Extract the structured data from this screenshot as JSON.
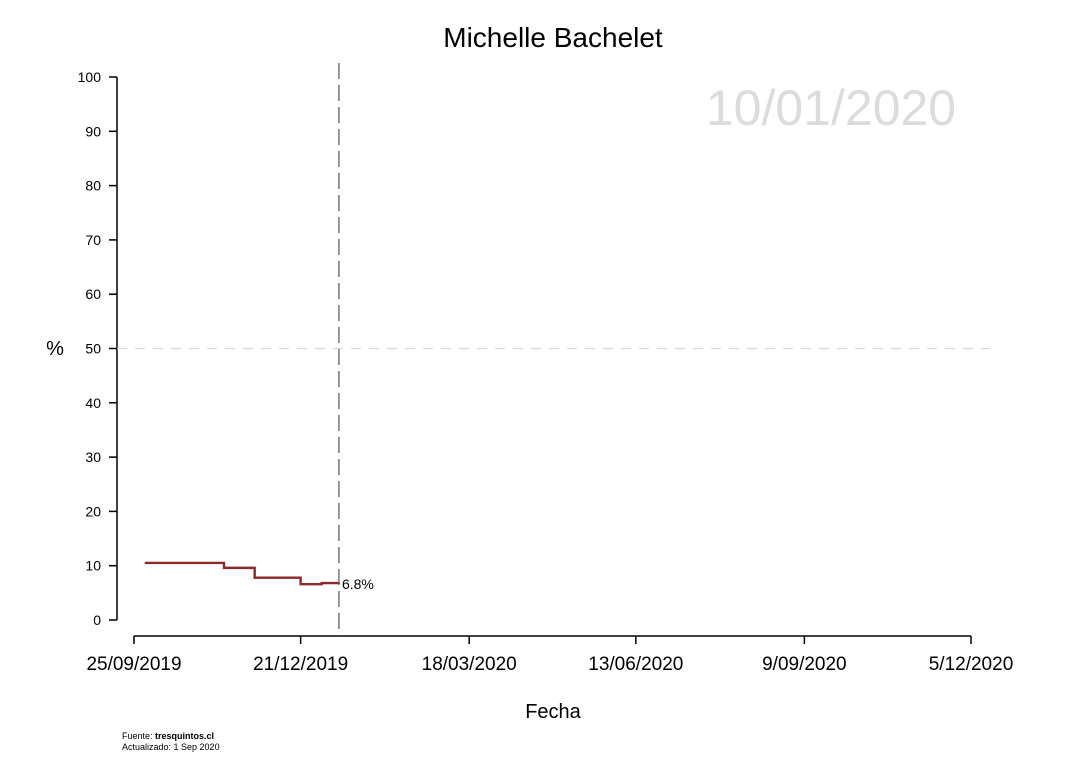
{
  "chart_data": {
    "type": "line",
    "title": "Michelle Bachelet",
    "watermark_date": "10/01/2020",
    "xlabel": "Fecha",
    "ylabel": "%",
    "ylim": [
      0,
      100
    ],
    "yticks": [
      0,
      10,
      20,
      30,
      40,
      50,
      60,
      70,
      80,
      90,
      100
    ],
    "xlim": [
      "2019-09-25",
      "2020-12-05"
    ],
    "xticks": [
      "2019-09-25",
      "2019-12-21",
      "2020-03-18",
      "2020-06-13",
      "2020-09-09",
      "2020-12-05"
    ],
    "xtick_labels": [
      "25/09/2019",
      "21/12/2019",
      "18/03/2020",
      "13/06/2020",
      "9/09/2020",
      "5/12/2020"
    ],
    "reference_line_y": 50,
    "current_date": "2020-01-10",
    "series": [
      {
        "step": true,
        "color": "#8b2a2a",
        "points": [
          {
            "x": "2019-10-01",
            "y": 10.5
          },
          {
            "x": "2019-11-11",
            "y": 9.6
          },
          {
            "x": "2019-11-27",
            "y": 7.8
          },
          {
            "x": "2019-12-21",
            "y": 6.6
          },
          {
            "x": "2020-01-01",
            "y": 6.8
          },
          {
            "x": "2020-01-10",
            "y": 6.8
          }
        ]
      }
    ],
    "end_label": "6.8%"
  },
  "footer": {
    "source_prefix": "Fuente: ",
    "source_name": "tresquintos.cl",
    "updated": "Actualizado: 1 Sep 2020"
  }
}
